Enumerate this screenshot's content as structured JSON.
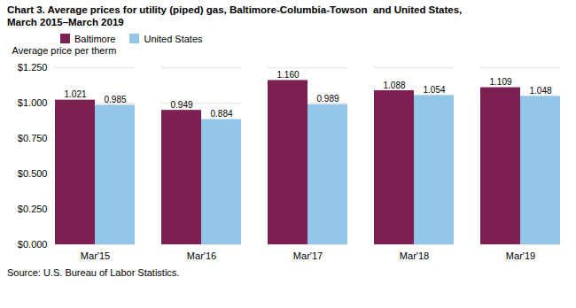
{
  "chart_data": {
    "type": "bar",
    "title": "Chart 3. Average prices for utility (piped) gas, Baltimore-Columbia-Towson  and United States,",
    "subtitle": "March 2015–March 2019",
    "ylabel": "Average price per therm",
    "caption": "Source: U.S. Bureau of Labor Statistics.",
    "categories": [
      "Mar'15",
      "Mar'16",
      "Mar'17",
      "Mar'18",
      "Mar'19"
    ],
    "series": [
      {
        "name": "Baltimore",
        "color": "#7B2051",
        "values": [
          1.021,
          0.949,
          1.16,
          1.088,
          1.109
        ],
        "value_labels": [
          "1.021",
          "0.949",
          "1.160",
          "1.088",
          "1.109"
        ]
      },
      {
        "name": "United States",
        "color": "#92C5E8",
        "values": [
          0.985,
          0.884,
          0.989,
          1.054,
          1.048
        ],
        "value_labels": [
          "0.985",
          "0.884",
          "0.989",
          "1.054",
          "1.048"
        ]
      }
    ],
    "ylim": [
      0,
      1.25
    ],
    "yticks": [
      {
        "value": 0,
        "label": "$0.000"
      },
      {
        "value": 0.25,
        "label": "$0.250"
      },
      {
        "value": 0.5,
        "label": "$0.500"
      },
      {
        "value": 0.75,
        "label": "$0.750"
      },
      {
        "value": 1.0,
        "label": "$1.000"
      },
      {
        "value": 1.25,
        "label": "$1.250"
      }
    ],
    "grid": true,
    "legend": "upper left",
    "data_labels": true
  }
}
